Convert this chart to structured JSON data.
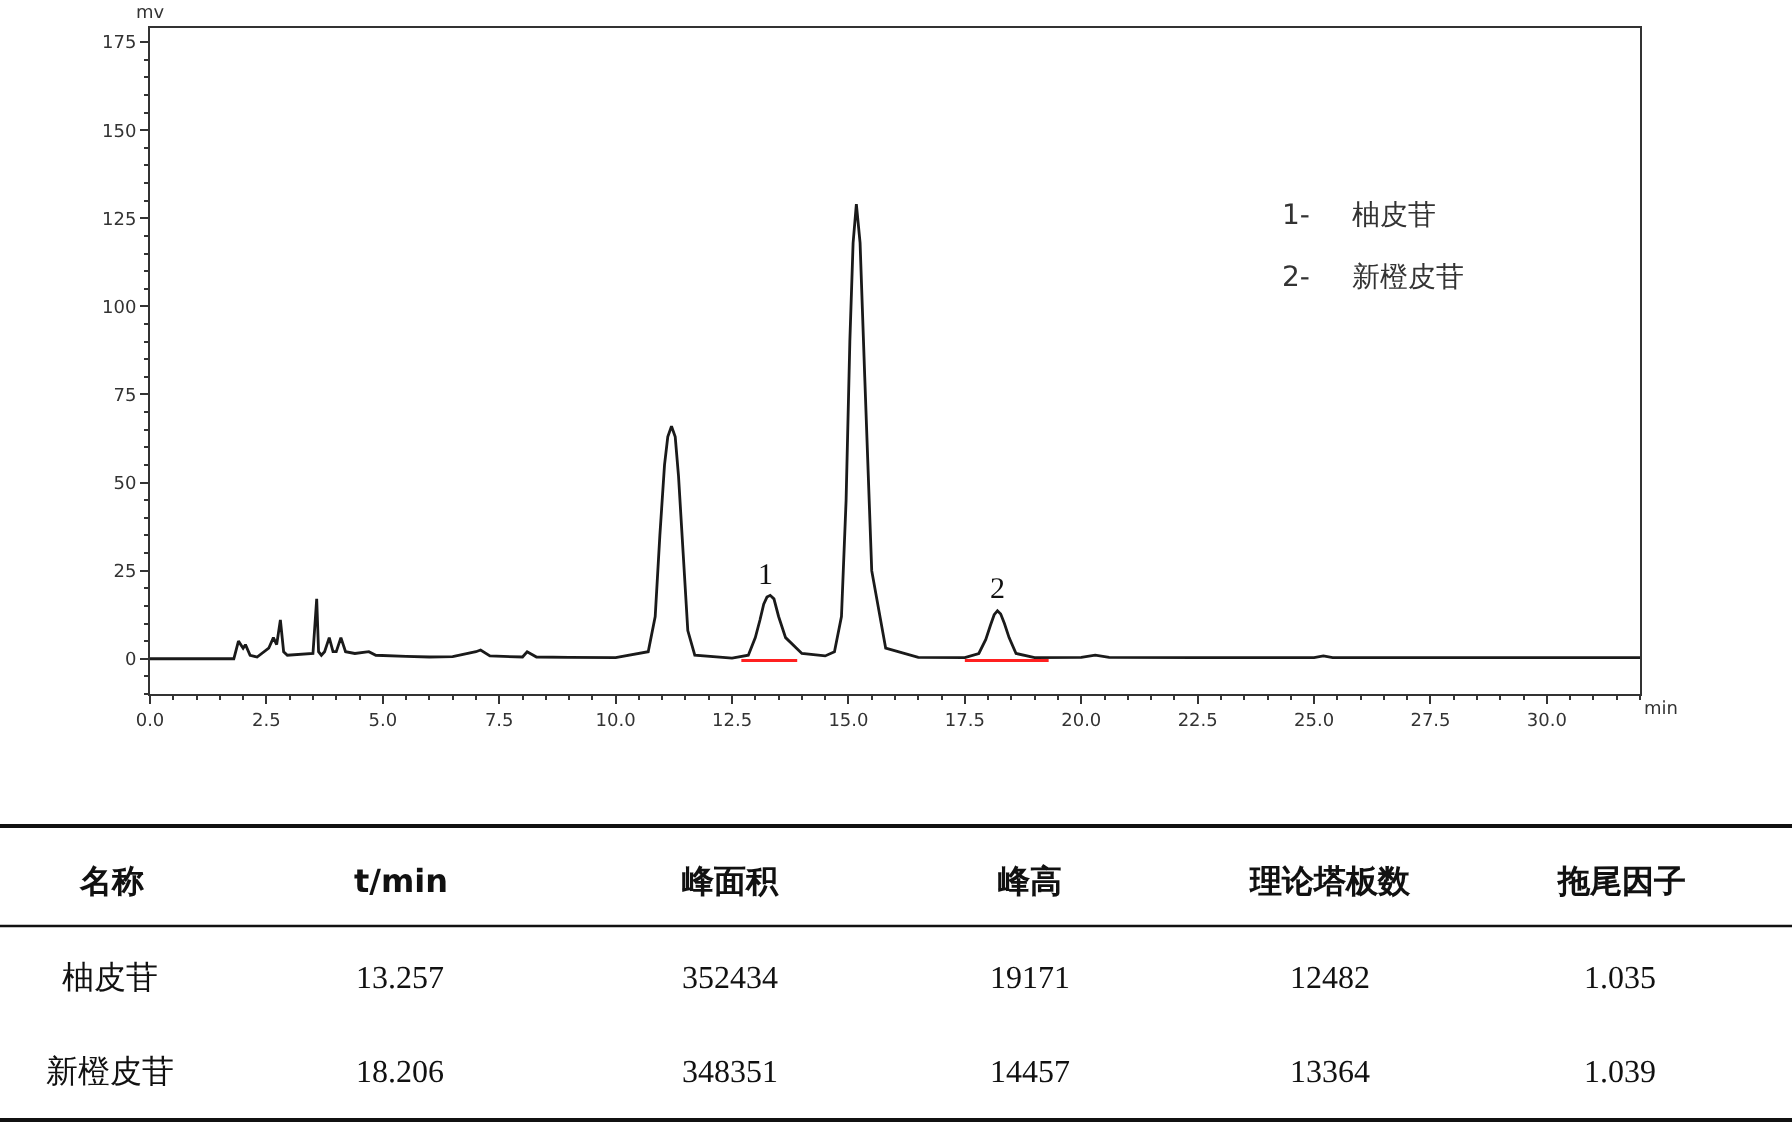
{
  "chart_data": {
    "type": "line",
    "xlabel": "min",
    "ylabel": "mv",
    "xlim": [
      0,
      32
    ],
    "ylim": [
      -10,
      179
    ],
    "xticks": [
      {
        "value": 0,
        "label": "0.0"
      },
      {
        "value": 2.5,
        "label": "2.5"
      },
      {
        "value": 5,
        "label": "5.0"
      },
      {
        "value": 7.5,
        "label": "7.5"
      },
      {
        "value": 10,
        "label": "10.0"
      },
      {
        "value": 12.5,
        "label": "12.5"
      },
      {
        "value": 15,
        "label": "15.0"
      },
      {
        "value": 17.5,
        "label": "17.5"
      },
      {
        "value": 20,
        "label": "20.0"
      },
      {
        "value": 22.5,
        "label": "22.5"
      },
      {
        "value": 25,
        "label": "25.0"
      },
      {
        "value": 27.5,
        "label": "27.5"
      },
      {
        "value": 30,
        "label": "30.0"
      }
    ],
    "yticks": [
      0,
      25,
      50,
      75,
      100,
      125,
      150,
      175
    ],
    "marker": "none",
    "line_style": "solid",
    "series": [
      {
        "color": "#1a1a1a",
        "x": [
          0,
          1.8,
          1.9,
          2.0,
          2.05,
          2.15,
          2.3,
          2.55,
          2.65,
          2.72,
          2.8,
          2.87,
          2.95,
          3.5,
          3.58,
          3.62,
          3.68,
          3.75,
          3.85,
          3.93,
          4.0,
          4.1,
          4.2,
          4.4,
          4.7,
          4.85,
          5.5,
          6.0,
          6.5,
          7.0,
          7.1,
          7.3,
          8.0,
          8.1,
          8.3,
          9.0,
          10.0,
          10.7,
          10.85,
          10.95,
          11.05,
          11.12,
          11.2,
          11.28,
          11.35,
          11.45,
          11.55,
          11.7,
          12.5,
          12.85,
          13.0,
          13.1,
          13.18,
          13.25,
          13.32,
          13.4,
          13.5,
          13.65,
          14.0,
          14.5,
          14.7,
          14.85,
          14.95,
          15.03,
          15.1,
          15.17,
          15.25,
          15.35,
          15.5,
          15.8,
          16.5,
          17.5,
          17.8,
          17.95,
          18.05,
          18.13,
          18.2,
          18.27,
          18.35,
          18.45,
          18.6,
          19.0,
          20.0,
          20.3,
          20.6,
          22.5,
          25.0,
          25.2,
          25.4,
          27.5,
          30.0,
          32.0
        ],
        "values": [
          0,
          0,
          5,
          3,
          4,
          1,
          0.5,
          3,
          6,
          4,
          11,
          2,
          1,
          1.5,
          17,
          2,
          1,
          2,
          6,
          2,
          2,
          6,
          2,
          1.5,
          2,
          1,
          0.7,
          0.5,
          0.6,
          2,
          2.5,
          0.8,
          0.5,
          2,
          0.5,
          0.4,
          0.3,
          2,
          12,
          35,
          55,
          63,
          66,
          63,
          52,
          30,
          8,
          1,
          0.2,
          1,
          6,
          11,
          15.5,
          17.5,
          18,
          17,
          12,
          6,
          1.5,
          0.8,
          2,
          12,
          45,
          90,
          118,
          129,
          118,
          80,
          25,
          3,
          0.4,
          0.3,
          1.5,
          5.5,
          9.5,
          12.5,
          13.6,
          12.7,
          10,
          6,
          1.5,
          0.3,
          0.4,
          1,
          0.4,
          0.3,
          0.3,
          0.8,
          0.3,
          0.3,
          0.3,
          0.3
        ]
      },
      {
        "color": "#ff2020",
        "x": [
          12.7,
          13.9,
          13.95,
          17.5,
          19.3
        ],
        "values": [
          -0.5,
          -0.5,
          null,
          -0.5,
          -0.5
        ]
      }
    ],
    "annotations": [
      {
        "text": "1",
        "x": 13.25,
        "y": 18
      },
      {
        "text": "2",
        "x": 18.2,
        "y": 13.6
      },
      "1-",
      "柚皮苷",
      "2-",
      "新橙皮苷",
      "名称",
      "t/min",
      "峰面积",
      "峰高",
      "理论塔板数",
      "拖尾因子",
      "柚皮苷",
      "13.257",
      "352434",
      "19171",
      "12482",
      "1.035",
      "新橙皮苷",
      "18.206",
      "348351",
      "14457",
      "13364",
      "1.039"
    ]
  }
}
